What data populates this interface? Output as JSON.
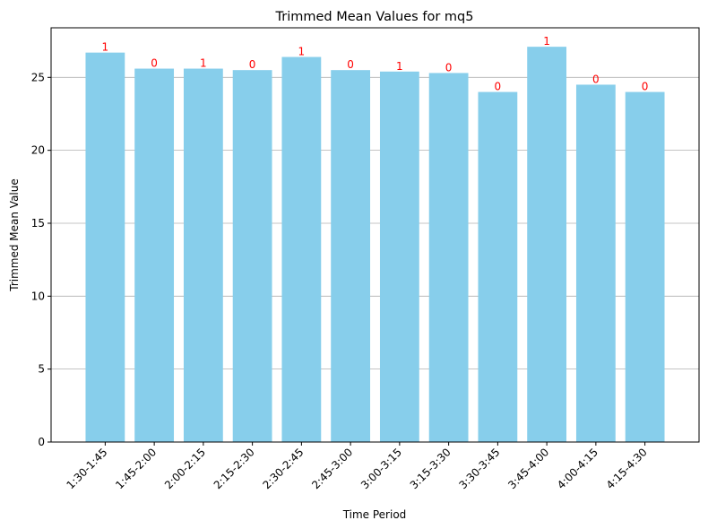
{
  "chart_data": {
    "type": "bar",
    "title": "Trimmed Mean Values for mq5",
    "xlabel": "Time Period",
    "ylabel": "Trimmed Mean Value",
    "categories": [
      "1:30-1:45",
      "1:45-2:00",
      "2:00-2:15",
      "2:15-2:30",
      "2:30-2:45",
      "2:45-3:00",
      "3:00-3:15",
      "3:15-3:30",
      "3:30-3:45",
      "3:45-4:00",
      "4:00-4:15",
      "4:15-4:30"
    ],
    "values": [
      26.7,
      25.6,
      25.6,
      25.5,
      26.4,
      25.5,
      25.4,
      25.3,
      24.0,
      27.1,
      24.5,
      24.0
    ],
    "bar_labels": [
      "1",
      "0",
      "1",
      "0",
      "1",
      "0",
      "1",
      "0",
      "0",
      "1",
      "0",
      "0"
    ],
    "ylim": [
      0,
      28.4
    ],
    "yticks": [
      0,
      5,
      10,
      15,
      20,
      25
    ],
    "grid": "y",
    "bar_color": "#87ceeb",
    "label_color": "#ff0000",
    "grid_color": "#b0b0b0"
  }
}
